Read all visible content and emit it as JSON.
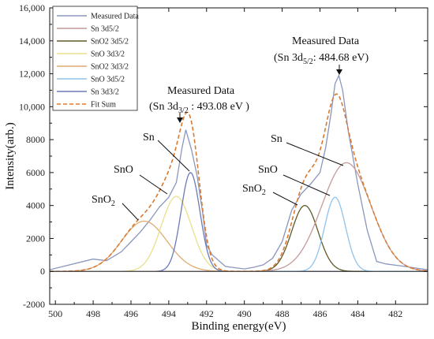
{
  "chart_data": {
    "type": "line",
    "xlabel": "Binding energy(eV)",
    "ylabel": "Intensity(arb.)",
    "xlim": [
      500.3,
      480.3
    ],
    "ylim": [
      -2000,
      16000
    ],
    "x_axis_reversed": true,
    "grid": false,
    "legend_position": "top-left",
    "xticks": [
      500,
      498,
      496,
      494,
      492,
      490,
      488,
      486,
      484,
      482
    ],
    "yticks": [
      -2000,
      0,
      2000,
      4000,
      6000,
      8000,
      10000,
      12000,
      14000,
      16000
    ],
    "ytick_labels": [
      "-2000",
      "0",
      "2000",
      "4000",
      "6000",
      "8000",
      "10,000",
      "12,000",
      "14,000",
      "16,000"
    ],
    "legend": [
      {
        "label": "Measured Data",
        "color": "#8b96bd",
        "dash": "solid"
      },
      {
        "label": "Sn 3d5/2",
        "color": "#c49a9a",
        "dash": "solid"
      },
      {
        "label": "SnO2  3d5/2",
        "color": "#5e5a28",
        "dash": "solid"
      },
      {
        "label": "SnO  3d3/2",
        "color": "#e8e08a",
        "dash": "solid"
      },
      {
        "label": "SnO2  3d3/2",
        "color": "#e0aa70",
        "dash": "solid"
      },
      {
        "label": "SnO  3d5/2",
        "color": "#8ec4ec",
        "dash": "solid"
      },
      {
        "label": "Sn 3d3/2",
        "color": "#6c7ab8",
        "dash": "solid"
      },
      {
        "label": "Fit Sum",
        "color": "#d87a30",
        "dash": "dashed"
      }
    ],
    "series": [
      {
        "name": "Measured Data",
        "color": "#8b96bd",
        "x": [
          500.3,
          498,
          497.3,
          496.5,
          496,
          495.5,
          495,
          494.5,
          494,
          493.6,
          493.3,
          493.1,
          492.8,
          492.5,
          492.2,
          492,
          491.7,
          491,
          490,
          489.5,
          489,
          488.5,
          488,
          487.5,
          487,
          486.5,
          486,
          485.7,
          485.4,
          485.2,
          485,
          484.8,
          484.5,
          484,
          483.5,
          483,
          482.5,
          481.5,
          480.3
        ],
        "y": [
          100,
          750,
          650,
          1200,
          1800,
          2400,
          3100,
          3900,
          4500,
          5400,
          7500,
          8600,
          7400,
          5800,
          3500,
          1600,
          1000,
          300,
          150,
          250,
          400,
          800,
          1800,
          3700,
          4700,
          5300,
          6000,
          7500,
          9700,
          11400,
          11900,
          11000,
          8500,
          5300,
          2500,
          600,
          450,
          300,
          100
        ]
      },
      {
        "name": "SnO2  3d3/2",
        "color": "#e0aa70",
        "center": 495.3,
        "height": 3050,
        "sigma": 1.2
      },
      {
        "name": "SnO  3d3/2",
        "color": "#e8e08a",
        "center": 493.6,
        "height": 4550,
        "sigma": 0.8
      },
      {
        "name": "Sn 3d3/2",
        "color": "#6c7ab8",
        "center": 492.85,
        "height": 6000,
        "sigma": 0.5
      },
      {
        "name": "SnO2  3d5/2",
        "color": "#5e5a28",
        "center": 486.8,
        "height": 4000,
        "sigma": 0.7
      },
      {
        "name": "SnO  3d5/2",
        "color": "#8ec4ec",
        "center": 485.2,
        "height": 4500,
        "sigma": 0.55
      },
      {
        "name": "Sn 3d5/2",
        "color": "#c49a9a",
        "center": 484.6,
        "height": 6600,
        "sigma": 1.3
      },
      {
        "name": "Fit Sum",
        "color": "#d87a30",
        "dash": "dashed",
        "sum_of": [
          "SnO2  3d3/2",
          "SnO  3d3/2",
          "Sn 3d3/2",
          "SnO2  3d5/2",
          "SnO  3d5/2",
          "Sn 3d5/2"
        ]
      }
    ],
    "annotations": {
      "left_peak_title": "Measured Data",
      "left_peak_value_prefix": "(Sn 3d",
      "left_peak_value_sub": "3/2",
      "left_peak_value_suffix": " : 493.08 eV )",
      "right_peak_title": "Measured Data",
      "right_peak_value_prefix": "(Sn 3d",
      "right_peak_value_sub": "5/2",
      "right_peak_value_suffix": ": 484.68 eV)",
      "labels": [
        {
          "id": "sno2-left",
          "text": "SnO",
          "sub": "2"
        },
        {
          "id": "sno-left",
          "text": "SnO",
          "sub": ""
        },
        {
          "id": "sn-left",
          "text": "Sn",
          "sub": ""
        },
        {
          "id": "sno2-right",
          "text": "SnO",
          "sub": "2"
        },
        {
          "id": "sno-right",
          "text": "SnO",
          "sub": ""
        },
        {
          "id": "sn-right",
          "text": "Sn",
          "sub": ""
        }
      ]
    }
  }
}
